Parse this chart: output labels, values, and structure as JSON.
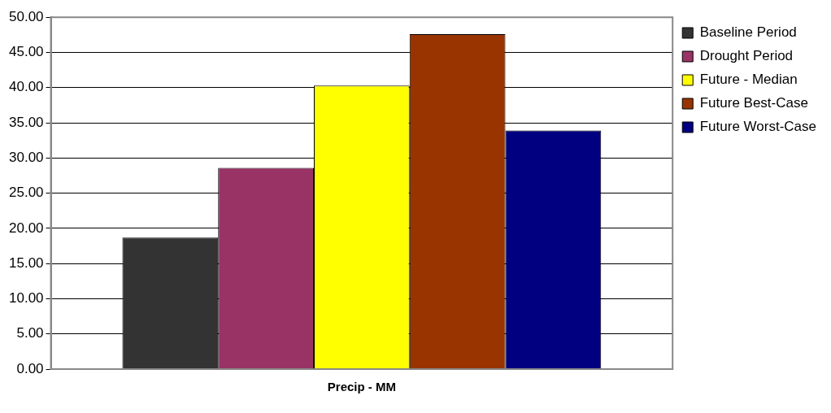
{
  "chart_data": {
    "type": "bar",
    "categories": [
      "Precip - MM"
    ],
    "series": [
      {
        "name": "Baseline Period",
        "color": "#333333",
        "values": [
          18.7
        ]
      },
      {
        "name": "Drought Period",
        "color": "#993366",
        "values": [
          28.6
        ]
      },
      {
        "name": "Future - Median",
        "color": "#ffff00",
        "values": [
          40.3
        ]
      },
      {
        "name": "Future Best-Case",
        "color": "#993300",
        "values": [
          47.6
        ]
      },
      {
        "name": "Future Worst-Case",
        "color": "#000080",
        "values": [
          33.9
        ]
      }
    ],
    "ylim": [
      0,
      50
    ],
    "yticks": [
      {
        "value": 0,
        "label": "0.00"
      },
      {
        "value": 5,
        "label": "5.00"
      },
      {
        "value": 10,
        "label": "10.00"
      },
      {
        "value": 15,
        "label": "15.00"
      },
      {
        "value": 20,
        "label": "20.00"
      },
      {
        "value": 25,
        "label": "25.00"
      },
      {
        "value": 30,
        "label": "30.00"
      },
      {
        "value": 35,
        "label": "35.00"
      },
      {
        "value": 40,
        "label": "40.00"
      },
      {
        "value": 45,
        "label": "45.00"
      },
      {
        "value": 50,
        "label": "50.00"
      }
    ],
    "grid": "y",
    "legend": "right"
  }
}
